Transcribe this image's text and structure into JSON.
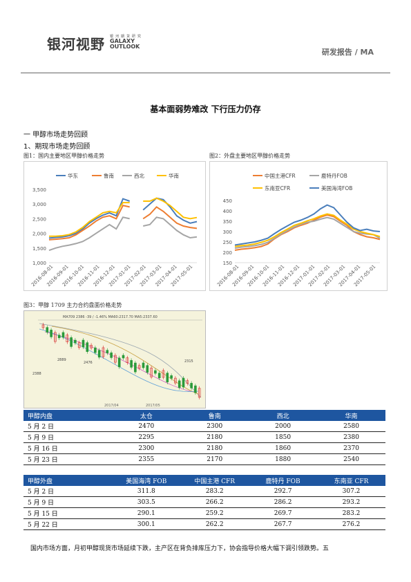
{
  "header": {
    "logo_cn": "银河视野",
    "logo_small": "银河期货研究",
    "logo_en_1": "GALAXY",
    "logo_en_2": "OUTLOOK",
    "report_tag": "研发报告 / MA"
  },
  "title": "基本面弱势难改 下行压力仍存",
  "section1": "一  甲醇市场走势回顾",
  "section1_1": "1、期现市场走势回顾",
  "fig1": {
    "caption": "图1：国内主要地区甲醇价格走势",
    "chart_data": {
      "type": "line",
      "series": [
        {
          "name": "华东",
          "color": "#4a7ebb",
          "values": [
            1840,
            1860,
            1880,
            1920,
            2000,
            2150,
            2350,
            2500,
            2620,
            2700,
            2600,
            3180,
            3100,
            null,
            2800,
            3000,
            3200,
            3150,
            2900,
            2600,
            2450,
            2350,
            2400
          ]
        },
        {
          "name": "鲁南",
          "color": "#ed7d31",
          "values": [
            1780,
            1800,
            1820,
            1850,
            1950,
            2100,
            2250,
            2420,
            2550,
            2600,
            2500,
            2950,
            2900,
            null,
            2500,
            2650,
            2900,
            2750,
            2550,
            2350,
            2250,
            2200,
            2170
          ]
        },
        {
          "name": "西北",
          "color": "#a5a5a5",
          "values": [
            1420,
            1500,
            1560,
            1600,
            1650,
            1720,
            1850,
            2000,
            2150,
            2300,
            2150,
            2550,
            2500,
            null,
            2250,
            2300,
            2550,
            2500,
            2300,
            2100,
            1950,
            1850,
            1880
          ]
        },
        {
          "name": "华南",
          "color": "#ffc000",
          "values": [
            1900,
            1900,
            1920,
            1960,
            2050,
            2200,
            2400,
            2550,
            2700,
            2750,
            2700,
            3050,
            3050,
            null,
            3100,
            3100,
            3200,
            3100,
            2950,
            2750,
            2550,
            2500,
            2540
          ]
        }
      ],
      "x_labels": [
        "2016-08-01",
        "2016-09-01",
        "2016-10-01",
        "2016-11-01",
        "2016-12-01",
        "2017-01-01",
        "2017-02-01",
        "2017-03-01",
        "2017-04-01",
        "2017-05-01"
      ],
      "y_ticks": [
        "3,500",
        "3,000",
        "2,500",
        "2,000",
        "1,500",
        "1,000"
      ],
      "ylim": [
        1000,
        3500
      ],
      "legend": "top"
    }
  },
  "fig2": {
    "caption": "图2：外盘主要地区甲醇价格走势",
    "chart_data": {
      "type": "line",
      "series": [
        {
          "name": "中国主港CFR",
          "color": "#ed7d31",
          "values": [
            210,
            215,
            218,
            222,
            228,
            240,
            265,
            285,
            300,
            318,
            330,
            340,
            355,
            370,
            380,
            372,
            350,
            330,
            300,
            285,
            275,
            270,
            262
          ]
        },
        {
          "name": "鹿特丹FOB",
          "color": "#a5a5a5",
          "values": [
            220,
            225,
            228,
            232,
            238,
            248,
            268,
            288,
            305,
            322,
            335,
            345,
            350,
            360,
            368,
            360,
            340,
            320,
            300,
            292,
            288,
            285,
            268
          ]
        },
        {
          "name": "东南亚CFR",
          "color": "#ffc000",
          "values": [
            228,
            232,
            235,
            240,
            248,
            258,
            275,
            295,
            312,
            330,
            340,
            352,
            362,
            375,
            385,
            378,
            355,
            335,
            312,
            300,
            292,
            285,
            276
          ]
        },
        {
          "name": "美国海湾FOB",
          "color": "#4a7ebb",
          "values": [
            235,
            240,
            245,
            250,
            258,
            268,
            290,
            310,
            328,
            345,
            355,
            368,
            385,
            410,
            428,
            415,
            380,
            345,
            318,
            305,
            311,
            303,
            300
          ]
        }
      ],
      "x_labels": [
        "2016-08-01",
        "2016-09-01",
        "2016-10-01",
        "2016-11-01",
        "2016-12-01",
        "2017-01-01",
        "2017-02-01",
        "2017-03-01",
        "2017-04-01",
        "2017-05-01"
      ],
      "y_ticks": [
        "450",
        "400",
        "350",
        "300",
        "250",
        "200",
        "150"
      ],
      "ylim": [
        150,
        450
      ],
      "legend": "top"
    }
  },
  "fig3": {
    "caption": "图3：甲醇 1709 主力合约盘面价格走势",
    "header_text": "MA709  2386  -39 / -1.46%  MA60:2317.70  MA5:2337.60",
    "labels": [
      "2889",
      "2476",
      "2388",
      "2315"
    ],
    "dates": [
      "2017/04",
      "2017/05"
    ]
  },
  "table1": {
    "headers": [
      "甲醇内盘",
      "太仓",
      "鲁南",
      "西北",
      "华南"
    ],
    "rows": [
      [
        "5 月 2 日",
        "2470",
        "2300",
        "2000",
        "2580"
      ],
      [
        "5 月 9 日",
        "2295",
        "2180",
        "1850",
        "2380"
      ],
      [
        "5 月 16 日",
        "2300",
        "2180",
        "1860",
        "2370"
      ],
      [
        "5 月 23 日",
        "2355",
        "2170",
        "1880",
        "2540"
      ]
    ]
  },
  "table2": {
    "headers": [
      "甲醇外盘",
      "美国海湾 FOB",
      "中国主港 CFR",
      "鹿特丹 FOB",
      "东南亚 CFR"
    ],
    "rows": [
      [
        "5 月 2 日",
        "311.8",
        "283.2",
        "292.7",
        "307.2"
      ],
      [
        "5 月 9 日",
        "303.5",
        "266.2",
        "286.2",
        "293.2"
      ],
      [
        "5 月 15 日",
        "290.1",
        "259.2",
        "269.7",
        "283.2"
      ],
      [
        "5 月 22 日",
        "300.1",
        "262.2",
        "267.7",
        "276.2"
      ]
    ]
  },
  "paragraph": "国内市场方面，月初甲醇现货市场延续下跌，主产区在背负排库压力下，协会指导价格大幅下调引领跌势。五"
}
